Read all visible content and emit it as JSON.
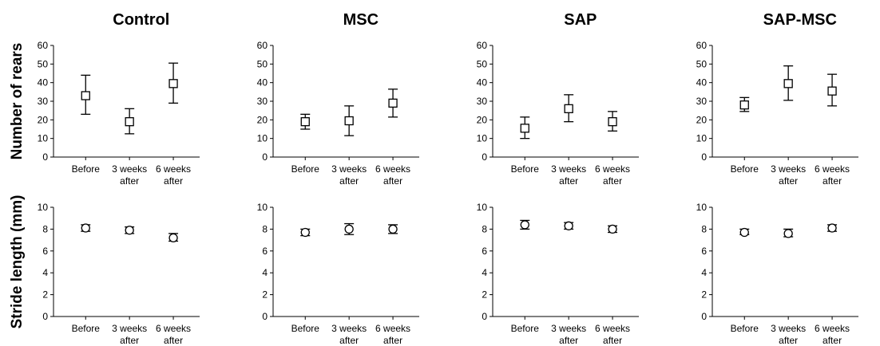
{
  "groups": [
    "Control",
    "MSC",
    "SAP",
    "SAP-MSC"
  ],
  "row_labels": [
    "Number of rears",
    "Stride length (mm)"
  ],
  "chart_data": [
    {
      "type": "scatter",
      "title": "Control",
      "ylabel": "Number of rears",
      "marker": "square",
      "categories": [
        "Before",
        "3 weeks after",
        "6 weeks after"
      ],
      "values": [
        33,
        19,
        39.5
      ],
      "error_low": [
        23,
        12.5,
        29
      ],
      "error_high": [
        44,
        26,
        50.5
      ],
      "ylim": [
        0,
        60
      ],
      "yticks": [
        0,
        10,
        20,
        30,
        40,
        50,
        60
      ]
    },
    {
      "type": "scatter",
      "title": "MSC",
      "ylabel": "",
      "marker": "square",
      "categories": [
        "Before",
        "3 weeks after",
        "6 weeks after"
      ],
      "values": [
        19,
        19.5,
        29
      ],
      "error_low": [
        15,
        11.5,
        21.5
      ],
      "error_high": [
        23,
        27.5,
        36.5
      ],
      "ylim": [
        0,
        60
      ],
      "yticks": [
        0,
        10,
        20,
        30,
        40,
        50,
        60
      ]
    },
    {
      "type": "scatter",
      "title": "SAP",
      "ylabel": "",
      "marker": "square",
      "categories": [
        "Before",
        "3 weeks after",
        "6 weeks after"
      ],
      "values": [
        15.5,
        26,
        19
      ],
      "error_low": [
        10,
        19,
        14
      ],
      "error_high": [
        21.5,
        33.5,
        24.5
      ],
      "ylim": [
        0,
        60
      ],
      "yticks": [
        0,
        10,
        20,
        30,
        40,
        50,
        60
      ]
    },
    {
      "type": "scatter",
      "title": "SAP-MSC",
      "ylabel": "",
      "marker": "square",
      "categories": [
        "Before",
        "3 weeks after",
        "6 weeks after"
      ],
      "values": [
        28,
        39.5,
        35.5
      ],
      "error_low": [
        24.5,
        30.5,
        27.5
      ],
      "error_high": [
        32,
        49,
        44.5
      ],
      "ylim": [
        0,
        60
      ],
      "yticks": [
        0,
        10,
        20,
        30,
        40,
        50,
        60
      ]
    },
    {
      "type": "scatter",
      "title": "",
      "ylabel": "Stride length (mm)",
      "marker": "circle",
      "categories": [
        "Before",
        "3 weeks after",
        "6 weeks after"
      ],
      "values": [
        8.1,
        7.9,
        7.2
      ],
      "error_low": [
        7.8,
        7.6,
        6.9
      ],
      "error_high": [
        8.4,
        8.2,
        7.6
      ],
      "ylim": [
        0,
        10
      ],
      "yticks": [
        0,
        2,
        4,
        6,
        8,
        10
      ]
    },
    {
      "type": "scatter",
      "title": "",
      "ylabel": "",
      "marker": "circle",
      "categories": [
        "Before",
        "3 weeks after",
        "6 weeks after"
      ],
      "values": [
        7.7,
        8.0,
        8.0
      ],
      "error_low": [
        7.4,
        7.5,
        7.6
      ],
      "error_high": [
        8.0,
        8.5,
        8.4
      ],
      "ylim": [
        0,
        10
      ],
      "yticks": [
        0,
        2,
        4,
        6,
        8,
        10
      ]
    },
    {
      "type": "scatter",
      "title": "",
      "ylabel": "",
      "marker": "circle",
      "categories": [
        "Before",
        "3 weeks after",
        "6 weeks after"
      ],
      "values": [
        8.4,
        8.3,
        8.0
      ],
      "error_low": [
        8.0,
        8.0,
        7.7
      ],
      "error_high": [
        8.8,
        8.6,
        8.3
      ],
      "ylim": [
        0,
        10
      ],
      "yticks": [
        0,
        2,
        4,
        6,
        8,
        10
      ]
    },
    {
      "type": "scatter",
      "title": "",
      "ylabel": "",
      "marker": "circle",
      "categories": [
        "Before",
        "3 weeks after",
        "6 weeks after"
      ],
      "values": [
        7.7,
        7.6,
        8.1
      ],
      "error_low": [
        7.5,
        7.3,
        7.8
      ],
      "error_high": [
        8.0,
        8.0,
        8.4
      ],
      "ylim": [
        0,
        10
      ],
      "yticks": [
        0,
        2,
        4,
        6,
        8,
        10
      ]
    }
  ]
}
